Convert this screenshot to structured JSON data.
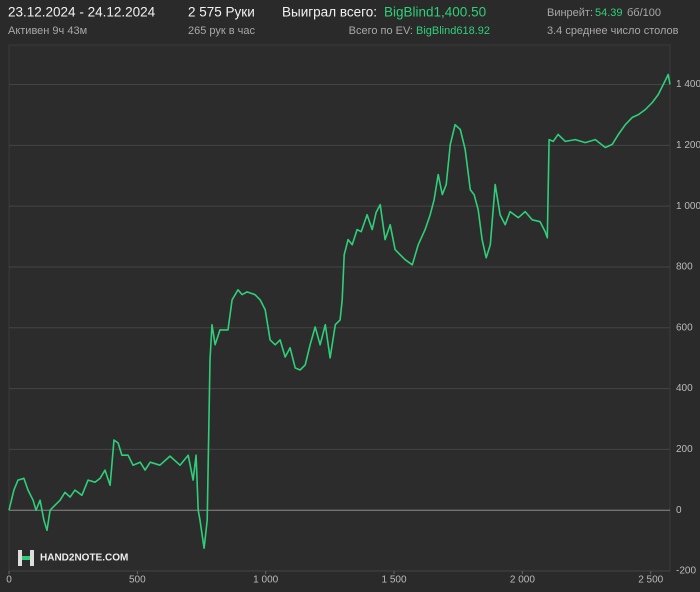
{
  "header": {
    "date_range": "23.12.2024 - 24.12.2024",
    "active": "Активен 9ч 43м",
    "hands": "2 575 Руки",
    "hands_per_hour": "265 рук в час",
    "won_label": "Выиграл всего:",
    "won_value": "BigBlind1,400.50",
    "ev_label": "Всего по EV:",
    "ev_value": "BigBlind618.92",
    "winrate_label": "Винрейт:",
    "winrate_value": "54.39",
    "winrate_unit": "бб/100",
    "tables": "3.4 среднее число столов",
    "logo": "HAND2NOTE.COM"
  },
  "chart_data": {
    "type": "line",
    "color": "#2fcf79",
    "grid": true,
    "xlim": [
      0,
      2575
    ],
    "ylim": [
      -200,
      1530
    ],
    "xticks": [
      0,
      500,
      {
        "value": 1000,
        "label": "1 000"
      },
      {
        "value": 1500,
        "label": "1 500"
      },
      {
        "value": 2000,
        "label": "2 000"
      },
      {
        "value": 2500,
        "label": "2 500"
      }
    ],
    "yticks": [
      {
        "value": -200,
        "label": "-200"
      },
      0,
      200,
      400,
      600,
      800,
      {
        "value": 1000,
        "label": "1 000"
      },
      {
        "value": 1200,
        "label": "1 200"
      },
      {
        "value": 1400,
        "label": "1 400"
      }
    ],
    "x": [
      0,
      19,
      35,
      58,
      74,
      94,
      105,
      121,
      136,
      148,
      160,
      179,
      199,
      218,
      238,
      257,
      284,
      308,
      335,
      355,
      374,
      394,
      409,
      425,
      440,
      464,
      483,
      511,
      530,
      550,
      588,
      627,
      666,
      698,
      717,
      729,
      737,
      744,
      760,
      772,
      783,
      791,
      803,
      822,
      853,
      869,
      892,
      908,
      927,
      958,
      978,
      998,
      1017,
      1037,
      1056,
      1076,
      1095,
      1115,
      1134,
      1154,
      1173,
      1193,
      1212,
      1232,
      1251,
      1271,
      1290,
      1298,
      1306,
      1321,
      1337,
      1356,
      1372,
      1395,
      1415,
      1430,
      1446,
      1465,
      1485,
      1504,
      1524,
      1543,
      1571,
      1594,
      1621,
      1641,
      1656,
      1672,
      1688,
      1703,
      1719,
      1738,
      1758,
      1777,
      1797,
      1812,
      1828,
      1843,
      1859,
      1875,
      1894,
      1913,
      1933,
      1952,
      1984,
      2011,
      2038,
      2069,
      2089,
      2097,
      2104,
      2120,
      2139,
      2167,
      2206,
      2245,
      2284,
      2323,
      2350,
      2374,
      2401,
      2428,
      2452,
      2479,
      2506,
      2529,
      2549,
      2568,
      2575
    ],
    "values": [
      0,
      66,
      99,
      105,
      66,
      33,
      0,
      33,
      -33,
      -66,
      0,
      16,
      33,
      59,
      43,
      66,
      49,
      99,
      92,
      105,
      132,
      82,
      231,
      221,
      181,
      181,
      148,
      158,
      132,
      158,
      148,
      178,
      148,
      181,
      99,
      181,
      0,
      -33,
      -125,
      -33,
      494,
      610,
      544,
      593,
      593,
      692,
      725,
      709,
      718,
      709,
      692,
      659,
      560,
      544,
      560,
      504,
      534,
      468,
      461,
      478,
      544,
      603,
      544,
      610,
      501,
      610,
      626,
      692,
      840,
      890,
      873,
      923,
      916,
      972,
      923,
      979,
      1005,
      890,
      939,
      857,
      840,
      824,
      807,
      873,
      923,
      972,
      1021,
      1104,
      1038,
      1071,
      1203,
      1268,
      1252,
      1186,
      1054,
      1038,
      988,
      890,
      830,
      873,
      1071,
      972,
      939,
      982,
      962,
      982,
      955,
      949,
      916,
      896,
      1219,
      1213,
      1236,
      1213,
      1219,
      1209,
      1219,
      1193,
      1203,
      1236,
      1268,
      1292,
      1301,
      1318,
      1341,
      1367,
      1400,
      1433,
      1400.5
    ]
  }
}
